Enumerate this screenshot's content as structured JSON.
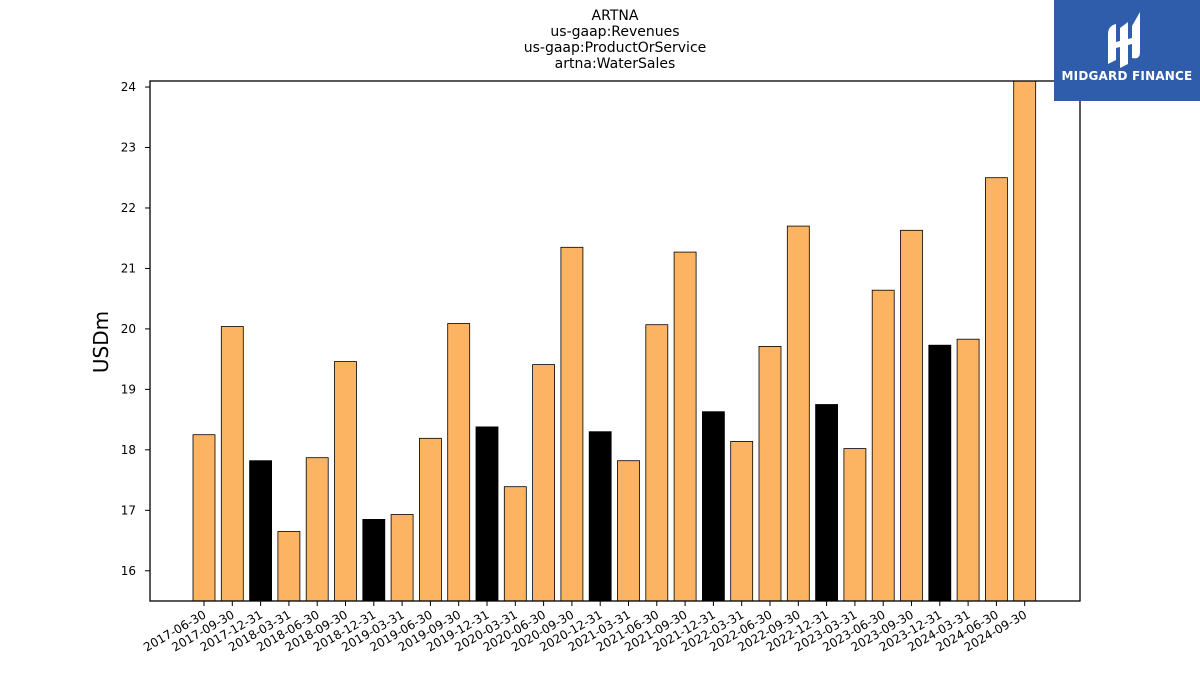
{
  "chart_data": {
    "type": "bar",
    "title_lines": [
      "ARTNA",
      "us-gaap:Revenues",
      "us-gaap:ProductOrService",
      "artna:WaterSales"
    ],
    "xlabel": "",
    "ylabel": "USDm",
    "ylim": [
      15.5,
      24.1
    ],
    "yticks": [
      16,
      17,
      18,
      19,
      20,
      21,
      22,
      23,
      24
    ],
    "grid": false,
    "categories": [
      "2017-06-30",
      "2017-09-30",
      "2017-12-31",
      "2018-03-31",
      "2018-06-30",
      "2018-09-30",
      "2018-12-31",
      "2019-03-31",
      "2019-06-30",
      "2019-09-30",
      "2019-12-31",
      "2020-03-31",
      "2020-06-30",
      "2020-09-30",
      "2020-12-31",
      "2021-03-31",
      "2021-06-30",
      "2021-09-30",
      "2021-12-31",
      "2022-03-31",
      "2022-06-30",
      "2022-09-30",
      "2022-12-31",
      "2023-03-31",
      "2023-06-30",
      "2023-09-30",
      "2023-12-31",
      "2024-03-31",
      "2024-06-30",
      "2024-09-30"
    ],
    "values": [
      18.25,
      20.04,
      17.82,
      16.65,
      17.87,
      19.46,
      16.85,
      16.93,
      18.19,
      20.09,
      18.38,
      17.39,
      19.41,
      21.35,
      18.3,
      17.82,
      20.07,
      21.27,
      18.63,
      18.14,
      19.71,
      21.7,
      18.75,
      18.02,
      20.64,
      21.63,
      19.73,
      19.83,
      22.5,
      24.1
    ],
    "bar_colors": [
      "#fdb462",
      "#fdb462",
      "#000000",
      "#fdb462",
      "#fdb462",
      "#fdb462",
      "#000000",
      "#fdb462",
      "#fdb462",
      "#fdb462",
      "#000000",
      "#fdb462",
      "#fdb462",
      "#fdb462",
      "#000000",
      "#fdb462",
      "#fdb462",
      "#fdb462",
      "#000000",
      "#fdb462",
      "#fdb462",
      "#fdb462",
      "#000000",
      "#fdb462",
      "#fdb462",
      "#fdb462",
      "#000000",
      "#fdb462",
      "#fdb462",
      "#fdb462"
    ]
  },
  "logo": {
    "text": "MIDGARD FINANCE",
    "color": "#2f5dab"
  }
}
